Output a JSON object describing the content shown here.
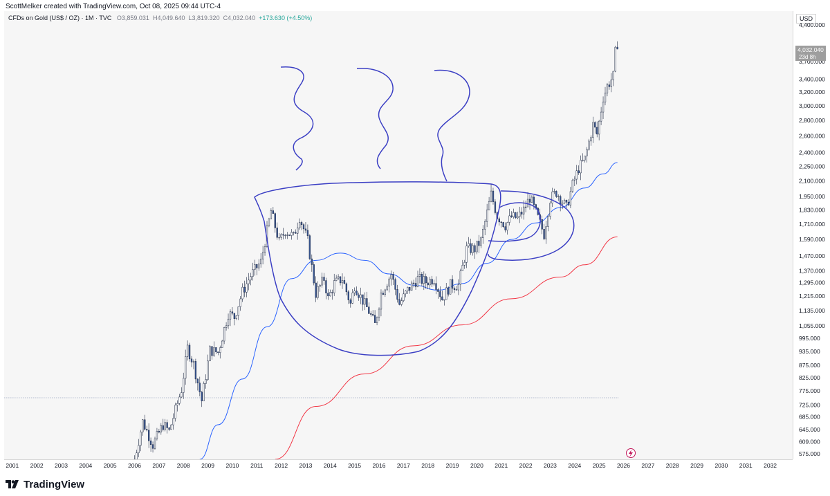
{
  "header": {
    "created_by": "ScottMelker created with TradingView.com, Oct 08, 2025 09:44 UTC-4"
  },
  "symbol_line": {
    "symbol": "CFDs on Gold (US$ / OZ) · 1M · TVC",
    "open_label": "O",
    "open": "3,859.031",
    "high_label": "H",
    "high": "4,049.640",
    "low_label": "L",
    "low": "3,819.320",
    "close_label": "C",
    "close": "4,032.040",
    "change": "+173.630 (+4.50%)"
  },
  "currency": "USD",
  "last_price": {
    "value": "4,032.040",
    "countdown": "23d 8h"
  },
  "footer": {
    "brand": "TradingView",
    "logo_icon": "tradingview-logo-icon"
  },
  "chart_data": {
    "type": "candlestick",
    "interval": "monthly",
    "price_scale": "log",
    "x_ticks": [
      "2001",
      "2002",
      "2003",
      "2004",
      "2005",
      "2006",
      "2007",
      "2008",
      "2009",
      "2010",
      "2011",
      "2012",
      "2013",
      "2014",
      "2015",
      "2016",
      "2017",
      "2018",
      "2019",
      "2020",
      "2021",
      "2022",
      "2023",
      "2024",
      "2025",
      "2026",
      "2027",
      "2028",
      "2029",
      "2030",
      "2031",
      "2032"
    ],
    "y_ticks": [
      575,
      609,
      645,
      685,
      725,
      775,
      825,
      875,
      935,
      995,
      1055,
      1135,
      1215,
      1295,
      1370,
      1470,
      1590,
      1710,
      1830,
      1950,
      2100,
      2250,
      2400,
      2600,
      2800,
      3000,
      3200,
      3400,
      3700,
      4400
    ],
    "y_tick_labels": [
      "575.000",
      "609.000",
      "645.000",
      "685.000",
      "725.000",
      "775.000",
      "825.000",
      "875.000",
      "935.000",
      "995.000",
      "1,055.000",
      "1,135.000",
      "1,215.000",
      "1,295.000",
      "1,370.000",
      "1,470.000",
      "1,590.000",
      "1,710.000",
      "1,830.000",
      "1,950.000",
      "2,100.000",
      "2,250.000",
      "2,400.000",
      "2,600.000",
      "2,800.000",
      "3,000.000",
      "3,200.000",
      "3,400.000",
      "3,700.000",
      "4,400.000"
    ],
    "ylim": [
      560,
      4700
    ],
    "xlim": [
      "2000-09",
      "2032-12"
    ],
    "close_path": [
      [
        "2006-01",
        560
      ],
      [
        "2006-05",
        670
      ],
      [
        "2006-10",
        600
      ],
      [
        "2007-03",
        660
      ],
      [
        "2007-06",
        640
      ],
      [
        "2007-12",
        780
      ],
      [
        "2008-03",
        950
      ],
      [
        "2008-06",
        880
      ],
      [
        "2008-10",
        740
      ],
      [
        "2009-02",
        940
      ],
      [
        "2009-06",
        930
      ],
      [
        "2009-11",
        1120
      ],
      [
        "2010-02",
        1100
      ],
      [
        "2010-06",
        1240
      ],
      [
        "2010-10",
        1340
      ],
      [
        "2011-03",
        1430
      ],
      [
        "2011-08",
        1820
      ],
      [
        "2011-12",
        1570
      ],
      [
        "2012-03",
        1660
      ],
      [
        "2012-07",
        1610
      ],
      [
        "2012-10",
        1770
      ],
      [
        "2013-02",
        1580
      ],
      [
        "2013-06",
        1230
      ],
      [
        "2013-10",
        1320
      ],
      [
        "2013-12",
        1200
      ],
      [
        "2014-03",
        1290
      ],
      [
        "2014-07",
        1320
      ],
      [
        "2014-11",
        1170
      ],
      [
        "2015-01",
        1280
      ],
      [
        "2015-05",
        1190
      ],
      [
        "2015-08",
        1130
      ],
      [
        "2015-11",
        1060
      ],
      [
        "2016-02",
        1230
      ],
      [
        "2016-07",
        1350
      ],
      [
        "2016-11",
        1170
      ],
      [
        "2017-03",
        1250
      ],
      [
        "2017-08",
        1320
      ],
      [
        "2017-12",
        1300
      ],
      [
        "2018-04",
        1320
      ],
      [
        "2018-08",
        1200
      ],
      [
        "2018-12",
        1280
      ],
      [
        "2019-04",
        1280
      ],
      [
        "2019-08",
        1520
      ],
      [
        "2019-12",
        1520
      ],
      [
        "2020-03",
        1580
      ],
      [
        "2020-08",
        1970
      ],
      [
        "2020-11",
        1780
      ],
      [
        "2021-03",
        1700
      ],
      [
        "2021-06",
        1770
      ],
      [
        "2021-09",
        1760
      ],
      [
        "2021-12",
        1830
      ],
      [
        "2022-03",
        1940
      ],
      [
        "2022-07",
        1760
      ],
      [
        "2022-10",
        1630
      ],
      [
        "2023-01",
        1930
      ],
      [
        "2023-04",
        1990
      ],
      [
        "2023-09",
        1850
      ],
      [
        "2023-12",
        2060
      ],
      [
        "2024-03",
        2230
      ],
      [
        "2024-06",
        2330
      ],
      [
        "2024-10",
        2740
      ],
      [
        "2024-12",
        2620
      ],
      [
        "2025-03",
        3120
      ],
      [
        "2025-05",
        3290
      ],
      [
        "2025-08",
        3450
      ],
      [
        "2025-09",
        3860
      ],
      [
        "2025-10",
        4032
      ]
    ],
    "moving_averages": [
      {
        "color": "#2962ff",
        "points": [
          [
            "2008-09",
            560
          ],
          [
            "2009-06",
            660
          ],
          [
            "2010-06",
            820
          ],
          [
            "2011-06",
            1050
          ],
          [
            "2012-06",
            1320
          ],
          [
            "2013-06",
            1440
          ],
          [
            "2014-06",
            1490
          ],
          [
            "2015-06",
            1440
          ],
          [
            "2016-06",
            1350
          ],
          [
            "2017-06",
            1280
          ],
          [
            "2018-06",
            1250
          ],
          [
            "2019-06",
            1290
          ],
          [
            "2020-06",
            1420
          ],
          [
            "2021-06",
            1590
          ],
          [
            "2022-06",
            1720
          ],
          [
            "2023-06",
            1850
          ],
          [
            "2024-06",
            2030
          ],
          [
            "2025-03",
            2170
          ],
          [
            "2025-10",
            2290
          ]
        ]
      },
      {
        "color": "#f23645",
        "points": [
          [
            "2011-10",
            560
          ],
          [
            "2013-06",
            720
          ],
          [
            "2015-06",
            840
          ],
          [
            "2017-06",
            960
          ],
          [
            "2019-06",
            1060
          ],
          [
            "2021-06",
            1200
          ],
          [
            "2023-06",
            1330
          ],
          [
            "2024-06",
            1410
          ],
          [
            "2025-10",
            1610
          ]
        ]
      }
    ],
    "hline": {
      "value": 750,
      "style": "dotted"
    }
  }
}
